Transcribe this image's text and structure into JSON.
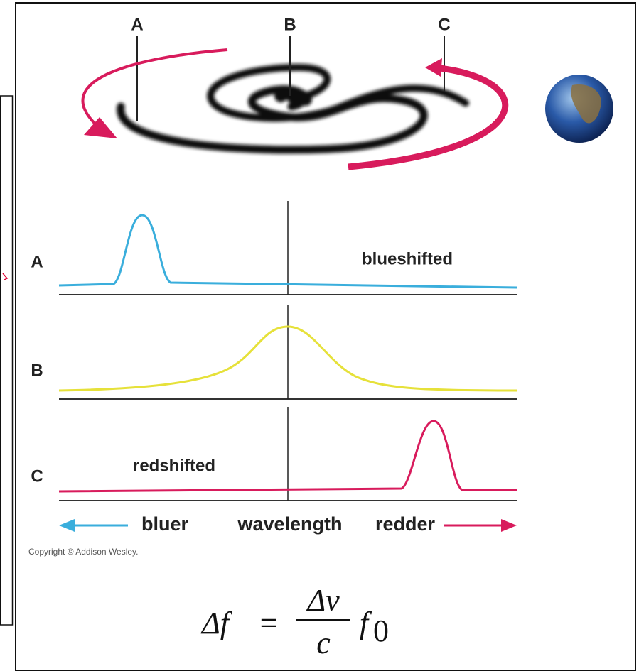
{
  "galaxy_labels": [
    "A",
    "B",
    "C"
  ],
  "spectra": [
    {
      "label": "A",
      "annotation": "blueshifted"
    },
    {
      "label": "B"
    },
    {
      "label": "C",
      "annotation": "redshifted"
    }
  ],
  "axis": {
    "left": "bluer",
    "center": "wavelength",
    "right": "redder"
  },
  "copyright": "Copyright © Addison Wesley.",
  "formula": {
    "lhs": "Δf",
    "equals": "=",
    "numerator": "Δv",
    "denominator": "c",
    "factor": "f",
    "subscript": "0"
  }
}
